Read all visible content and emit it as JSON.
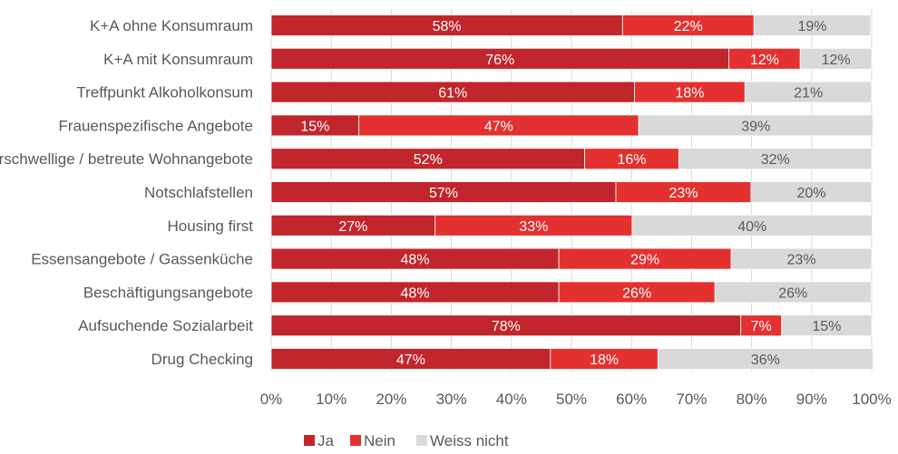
{
  "chart_data": {
    "type": "bar",
    "orientation": "horizontal",
    "stacked": true,
    "title": "",
    "xlabel": "",
    "ylabel": "",
    "xlim": [
      0,
      100
    ],
    "x_ticks": [
      "0%",
      "10%",
      "20%",
      "30%",
      "40%",
      "50%",
      "60%",
      "70%",
      "80%",
      "90%",
      "100%"
    ],
    "grid": "vertical",
    "legend_position": "bottom",
    "categories": [
      "K+A ohne Konsumraum",
      "K+A mit Konsumraum",
      "Treffpunkt Alkoholkonsum",
      "Frauenspezifische Angebote",
      "Niederschwellige / betreute Wohnangebote",
      "Notschlafstellen",
      "Housing first",
      "Essensangebote / Gassenküche",
      "Beschäftigungsangebote",
      "Aufsuchende Sozialarbeit",
      "Drug Checking"
    ],
    "series": [
      {
        "name": "Ja",
        "color": "#c0262b",
        "label_color": "#ffffff",
        "values": [
          58.5,
          76.2,
          60.5,
          14.6,
          52.2,
          57.4,
          27.3,
          47.9,
          47.9,
          78.2,
          46.5
        ],
        "labels": [
          "58%",
          "76%",
          "61%",
          "15%",
          "52%",
          "57%",
          "27%",
          "48%",
          "48%",
          "78%",
          "47%"
        ]
      },
      {
        "name": "Nein",
        "color": "#e3312f",
        "label_color": "#ffffff",
        "values": [
          21.9,
          11.9,
          18.4,
          46.6,
          15.7,
          22.5,
          32.8,
          28.7,
          26.0,
          6.8,
          17.9
        ],
        "labels": [
          "22%",
          "12%",
          "18%",
          "47%",
          "16%",
          "23%",
          "33%",
          "29%",
          "26%",
          "7%",
          "18%"
        ]
      },
      {
        "name": "Weiss nicht",
        "color": "#d9d9d9",
        "label_color": "#595959",
        "values": [
          19.4,
          11.9,
          21.1,
          39.0,
          32.1,
          20.1,
          40.0,
          23.4,
          26.0,
          15.0,
          35.8
        ],
        "labels": [
          "19%",
          "12%",
          "21%",
          "39%",
          "32%",
          "20%",
          "40%",
          "23%",
          "26%",
          "15%",
          "36%"
        ]
      }
    ]
  }
}
